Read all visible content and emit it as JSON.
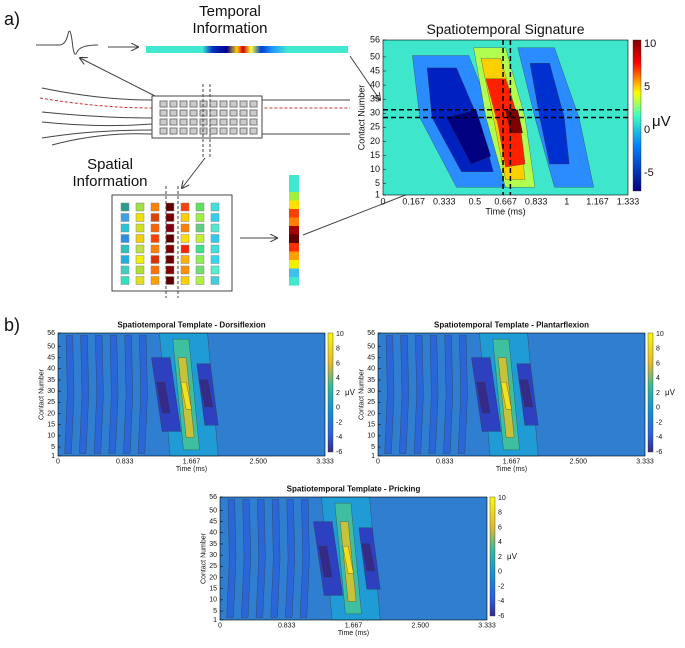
{
  "panel_a": {
    "label": "a)",
    "temporal_label": [
      "Temporal",
      "Information"
    ],
    "spatial_label": [
      "Spatial",
      "Information"
    ],
    "signature": {
      "title": "Spatiotemporal Signature",
      "y_label": "Contact Number",
      "x_label": "Time (ms)",
      "yticks": [
        "1",
        "5",
        "10",
        "15",
        "20",
        "25",
        "30",
        "35",
        "40",
        "45",
        "50",
        "56"
      ],
      "xticks": [
        "0",
        "0.167",
        "0.333",
        "0.5",
        "0.667",
        "0.833",
        "1",
        "1.167",
        "1.333"
      ],
      "colorbar_ticks": [
        "10",
        "5",
        "0",
        "-5"
      ],
      "colorbar_unit": "μV"
    }
  },
  "panel_b": {
    "label": "b)",
    "templates": [
      {
        "title": "Spatiotemporal Template - Dorsiflexion",
        "y_label": "Contact Number",
        "x_label": "Time (ms)",
        "yticks": [
          "1",
          "5",
          "10",
          "15",
          "20",
          "25",
          "30",
          "35",
          "40",
          "45",
          "50",
          "56"
        ],
        "xticks": [
          "0",
          "0.833",
          "1.667",
          "2.500",
          "3.333"
        ],
        "colorbar_ticks": [
          "10",
          "8",
          "6",
          "4",
          "2",
          "0",
          "-2",
          "-4",
          "-6"
        ],
        "colorbar_unit": "μV"
      },
      {
        "title": "Spatiotemporal Template - Plantarflexion",
        "y_label": "Contact Number",
        "x_label": "Time (ms)",
        "yticks": [
          "1",
          "5",
          "10",
          "15",
          "20",
          "25",
          "30",
          "35",
          "40",
          "45",
          "50",
          "56"
        ],
        "xticks": [
          "0",
          "0.833",
          "1.667",
          "2.500",
          "3.333"
        ],
        "colorbar_ticks": [
          "10",
          "8",
          "6",
          "4",
          "2",
          "0",
          "-2",
          "-4",
          "-6"
        ],
        "colorbar_unit": "μV"
      },
      {
        "title": "Spatiotemporal Template - Pricking",
        "y_label": "Contact Number",
        "x_label": "Time (ms)",
        "yticks": [
          "1",
          "5",
          "10",
          "15",
          "20",
          "25",
          "30",
          "35",
          "40",
          "45",
          "50",
          "56"
        ],
        "xticks": [
          "0",
          "0.833",
          "1.667",
          "2.500",
          "3.333"
        ],
        "colorbar_ticks": [
          "10",
          "8",
          "6",
          "4",
          "2",
          "0",
          "-2",
          "-4",
          "-6"
        ],
        "colorbar_unit": "μV"
      }
    ]
  }
}
